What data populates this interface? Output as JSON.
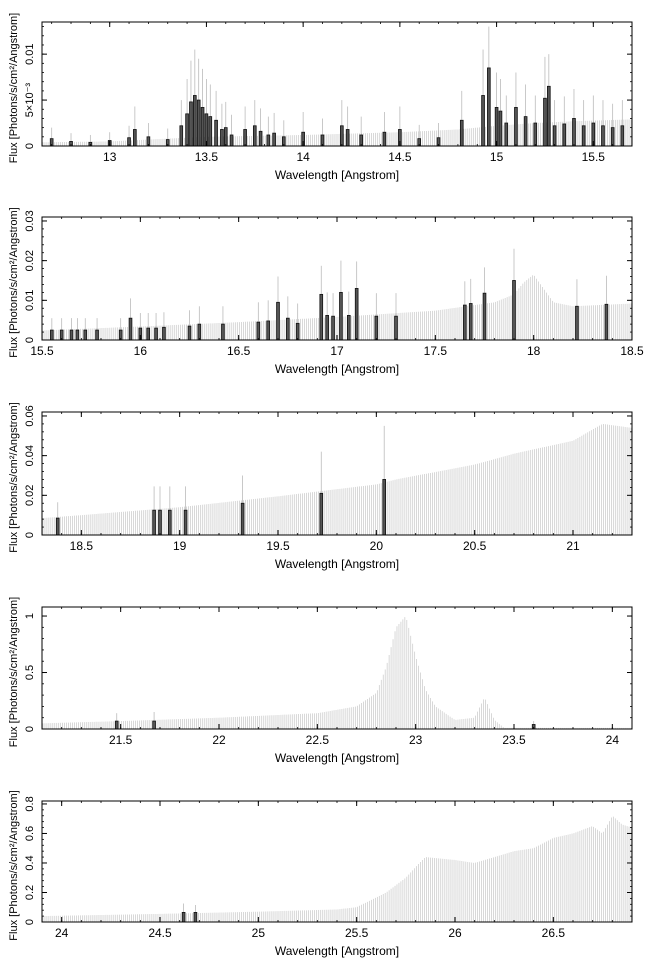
{
  "chart_data": [
    {
      "type": "bar",
      "xlabel": "Wavelength [Angstrom]",
      "ylabel": "Flux [Photons/s/cm²/Angstrom]",
      "xlim": [
        12.65,
        15.7
      ],
      "ylim": [
        0,
        0.0135
      ],
      "xticks": [
        {
          "v": 13,
          "label": "13"
        },
        {
          "v": 13.5,
          "label": "13.5"
        },
        {
          "v": 14,
          "label": "14"
        },
        {
          "v": 14.5,
          "label": "14.5"
        },
        {
          "v": 15,
          "label": "15"
        },
        {
          "v": 15.5,
          "label": "15.5"
        }
      ],
      "yticks": [
        {
          "v": 0,
          "label": "0"
        },
        {
          "v": 0.005,
          "label": "5×10⁻³"
        },
        {
          "v": 0.01,
          "label": "0.01"
        }
      ],
      "model": {
        "x": [
          12.65,
          13.0,
          13.3,
          13.5,
          14.0,
          14.5,
          14.8,
          15.0,
          15.2,
          15.4,
          15.7
        ],
        "y": [
          0.0004,
          0.0005,
          0.0008,
          0.001,
          0.0012,
          0.0015,
          0.0018,
          0.0022,
          0.0025,
          0.0027,
          0.0029
        ]
      },
      "data": {
        "x": [
          12.7,
          12.8,
          12.9,
          13.0,
          13.1,
          13.13,
          13.2,
          13.3,
          13.37,
          13.4,
          13.42,
          13.44,
          13.46,
          13.48,
          13.5,
          13.52,
          13.55,
          13.58,
          13.6,
          13.63,
          13.7,
          13.75,
          13.78,
          13.82,
          13.85,
          13.9,
          14.0,
          14.1,
          14.2,
          14.23,
          14.3,
          14.42,
          14.5,
          14.6,
          14.7,
          14.82,
          14.93,
          14.96,
          15.0,
          15.02,
          15.05,
          15.1,
          15.15,
          15.2,
          15.25,
          15.27,
          15.3,
          15.35,
          15.4,
          15.45,
          15.5,
          15.55,
          15.6,
          15.65
        ],
        "y": [
          0.0008,
          0.0005,
          0.0004,
          0.0006,
          0.0009,
          0.0018,
          0.001,
          0.0007,
          0.0022,
          0.0035,
          0.0048,
          0.0055,
          0.005,
          0.0042,
          0.0035,
          0.0032,
          0.0028,
          0.0018,
          0.002,
          0.0012,
          0.0018,
          0.0022,
          0.0016,
          0.0012,
          0.0014,
          0.001,
          0.0015,
          0.0012,
          0.0022,
          0.0018,
          0.0012,
          0.0015,
          0.0018,
          0.0008,
          0.0009,
          0.0028,
          0.0055,
          0.0085,
          0.0042,
          0.0038,
          0.0025,
          0.0042,
          0.0032,
          0.0025,
          0.0052,
          0.0065,
          0.0022,
          0.0024,
          0.003,
          0.0022,
          0.0025,
          0.0022,
          0.002,
          0.0022
        ],
        "err": [
          0.0012,
          0.0009,
          0.0008,
          0.0009,
          0.0013,
          0.0025,
          0.0015,
          0.0012,
          0.0028,
          0.0038,
          0.0045,
          0.005,
          0.0045,
          0.0042,
          0.0038,
          0.0035,
          0.0032,
          0.0028,
          0.0028,
          0.0022,
          0.0025,
          0.0028,
          0.0025,
          0.002,
          0.0022,
          0.0018,
          0.0022,
          0.0018,
          0.0028,
          0.0025,
          0.002,
          0.0022,
          0.0025,
          0.0015,
          0.0016,
          0.0032,
          0.005,
          0.0045,
          0.0038,
          0.0035,
          0.003,
          0.0038,
          0.0035,
          0.003,
          0.0045,
          0.0035,
          0.0028,
          0.003,
          0.0032,
          0.0028,
          0.003,
          0.0028,
          0.0026,
          0.0028
        ]
      }
    },
    {
      "type": "bar",
      "xlabel": "Wavelength [Angstrom]",
      "ylabel": "Flux [Photons/s/cm²/Angstrom]",
      "xlim": [
        15.5,
        18.5
      ],
      "ylim": [
        0,
        0.031
      ],
      "xticks": [
        {
          "v": 15.5,
          "label": "15.5"
        },
        {
          "v": 16,
          "label": "16"
        },
        {
          "v": 16.5,
          "label": "16.5"
        },
        {
          "v": 17,
          "label": "17"
        },
        {
          "v": 17.5,
          "label": "17.5"
        },
        {
          "v": 18,
          "label": "18"
        },
        {
          "v": 18.5,
          "label": "18.5"
        }
      ],
      "yticks": [
        {
          "v": 0,
          "label": "0"
        },
        {
          "v": 0.01,
          "label": "0.01"
        },
        {
          "v": 0.02,
          "label": "0.02"
        },
        {
          "v": 0.03,
          "label": "0.03"
        }
      ],
      "model": {
        "x": [
          15.5,
          16.0,
          16.5,
          17.0,
          17.5,
          17.8,
          17.9,
          17.95,
          18.0,
          18.05,
          18.1,
          18.2,
          18.5
        ],
        "y": [
          0.0024,
          0.0034,
          0.0045,
          0.0058,
          0.0074,
          0.0095,
          0.0115,
          0.0145,
          0.0165,
          0.013,
          0.0095,
          0.0085,
          0.0092
        ]
      },
      "data": {
        "x": [
          15.55,
          15.6,
          15.65,
          15.68,
          15.72,
          15.78,
          15.9,
          15.95,
          16.0,
          16.04,
          16.08,
          16.12,
          16.25,
          16.3,
          16.42,
          16.6,
          16.65,
          16.7,
          16.75,
          16.8,
          16.92,
          16.95,
          16.98,
          17.02,
          17.06,
          17.1,
          17.2,
          17.3,
          17.65,
          17.68,
          17.75,
          17.9,
          18.22,
          18.37
        ],
        "y": [
          0.0025,
          0.0025,
          0.0025,
          0.0025,
          0.0025,
          0.0025,
          0.0025,
          0.0055,
          0.003,
          0.003,
          0.003,
          0.0032,
          0.0035,
          0.004,
          0.004,
          0.0045,
          0.0048,
          0.0095,
          0.0055,
          0.0042,
          0.0115,
          0.0062,
          0.006,
          0.012,
          0.0062,
          0.013,
          0.006,
          0.006,
          0.0088,
          0.0092,
          0.0118,
          0.015,
          0.0085,
          0.009
        ],
        "err": [
          0.003,
          0.003,
          0.003,
          0.003,
          0.003,
          0.003,
          0.003,
          0.005,
          0.0038,
          0.0038,
          0.0038,
          0.0038,
          0.004,
          0.0045,
          0.0045,
          0.005,
          0.0052,
          0.0065,
          0.0055,
          0.005,
          0.0072,
          0.0058,
          0.0058,
          0.008,
          0.006,
          0.0068,
          0.0058,
          0.0058,
          0.006,
          0.0062,
          0.0065,
          0.008,
          0.0068,
          0.0072
        ]
      }
    },
    {
      "type": "bar",
      "xlabel": "Wavelength [Angstrom]",
      "ylabel": "Flux [Photons/s/cm²/Angstrom]",
      "xlim": [
        18.3,
        21.3
      ],
      "ylim": [
        0,
        0.062
      ],
      "xticks": [
        {
          "v": 18.5,
          "label": "18.5"
        },
        {
          "v": 19,
          "label": "19"
        },
        {
          "v": 19.5,
          "label": "19.5"
        },
        {
          "v": 20,
          "label": "20"
        },
        {
          "v": 20.5,
          "label": "20.5"
        },
        {
          "v": 21,
          "label": "21"
        }
      ],
      "yticks": [
        {
          "v": 0,
          "label": "0"
        },
        {
          "v": 0.02,
          "label": "0.02"
        },
        {
          "v": 0.04,
          "label": "0.04"
        },
        {
          "v": 0.06,
          "label": "0.06"
        }
      ],
      "model": {
        "x": [
          18.3,
          18.5,
          19.0,
          19.5,
          20.0,
          20.1,
          20.5,
          20.7,
          21.0,
          21.15,
          21.3
        ],
        "y": [
          0.0085,
          0.01,
          0.014,
          0.0195,
          0.0255,
          0.028,
          0.0355,
          0.041,
          0.0475,
          0.056,
          0.054
        ]
      },
      "data": {
        "x": [
          18.38,
          18.87,
          18.9,
          18.95,
          19.03,
          19.32,
          19.72,
          20.04
        ],
        "y": [
          0.0085,
          0.0125,
          0.0125,
          0.0125,
          0.0125,
          0.016,
          0.021,
          0.028
        ],
        "err": [
          0.008,
          0.012,
          0.012,
          0.012,
          0.012,
          0.014,
          0.021,
          0.027
        ]
      }
    },
    {
      "type": "bar",
      "xlabel": "Wavelength [Angstrom]",
      "ylabel": "Flux [Photons/s/cm²/Angstrom]",
      "xlim": [
        21.1,
        24.1
      ],
      "ylim": [
        0,
        1.08
      ],
      "xticks": [
        {
          "v": 21.5,
          "label": "21.5"
        },
        {
          "v": 22,
          "label": "22"
        },
        {
          "v": 22.5,
          "label": "22.5"
        },
        {
          "v": 23,
          "label": "23"
        },
        {
          "v": 23.5,
          "label": "23.5"
        },
        {
          "v": 24,
          "label": "24"
        }
      ],
      "yticks": [
        {
          "v": 0,
          "label": "0"
        },
        {
          "v": 0.5,
          "label": "0.5"
        },
        {
          "v": 1,
          "label": "1"
        }
      ],
      "model": {
        "x": [
          21.1,
          21.5,
          22.0,
          22.5,
          22.7,
          22.8,
          22.85,
          22.9,
          22.95,
          23.0,
          23.05,
          23.1,
          23.2,
          23.3,
          23.35,
          23.4,
          23.45,
          24.1
        ],
        "y": [
          0.05,
          0.07,
          0.1,
          0.14,
          0.2,
          0.32,
          0.55,
          0.9,
          1.0,
          0.65,
          0.35,
          0.2,
          0.08,
          0.1,
          0.28,
          0.08,
          0.01,
          0.01
        ]
      },
      "data": {
        "x": [
          21.48,
          21.67,
          23.6
        ],
        "y": [
          0.07,
          0.07,
          0.04
        ],
        "err": [
          0.07,
          0.08,
          0.03
        ]
      }
    },
    {
      "type": "bar",
      "xlabel": "Wavelength [Angstrom]",
      "ylabel": "Flux [Photons/s/cm²/Angstrom]",
      "xlim": [
        23.9,
        26.9
      ],
      "ylim": [
        0,
        0.82
      ],
      "xticks": [
        {
          "v": 24,
          "label": "24"
        },
        {
          "v": 24.5,
          "label": "24.5"
        },
        {
          "v": 25,
          "label": "25"
        },
        {
          "v": 25.5,
          "label": "25.5"
        },
        {
          "v": 26,
          "label": "26"
        },
        {
          "v": 26.5,
          "label": "26.5"
        }
      ],
      "yticks": [
        {
          "v": 0,
          "label": "0"
        },
        {
          "v": 0.2,
          "label": "0.2"
        },
        {
          "v": 0.4,
          "label": "0.4"
        },
        {
          "v": 0.6,
          "label": "0.6"
        },
        {
          "v": 0.8,
          "label": "0.8"
        }
      ],
      "model": {
        "x": [
          23.9,
          24.5,
          25.0,
          25.4,
          25.5,
          25.65,
          25.75,
          25.82,
          25.85,
          26.0,
          26.1,
          26.3,
          26.4,
          26.5,
          26.6,
          26.7,
          26.75,
          26.8,
          26.85,
          26.9
        ],
        "y": [
          0.04,
          0.055,
          0.07,
          0.085,
          0.1,
          0.2,
          0.3,
          0.4,
          0.44,
          0.42,
          0.4,
          0.48,
          0.5,
          0.57,
          0.6,
          0.65,
          0.6,
          0.72,
          0.66,
          0.64
        ]
      },
      "data": {
        "x": [
          24.62,
          24.68
        ],
        "y": [
          0.065,
          0.065
        ],
        "err": [
          0.06,
          0.05
        ]
      }
    }
  ]
}
